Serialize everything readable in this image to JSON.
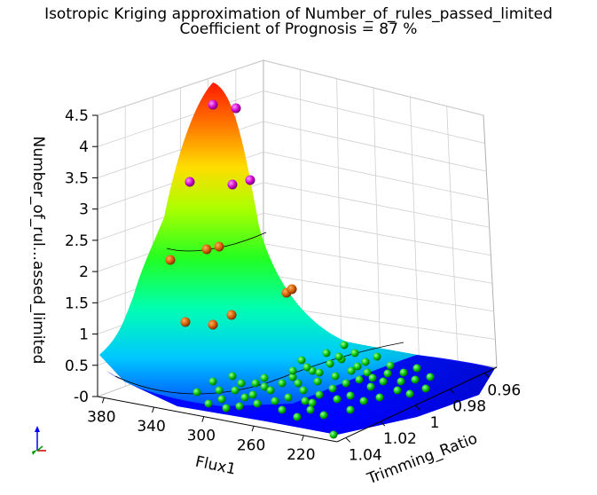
{
  "chart_data": {
    "type": "surface3d",
    "title": "Isotropic Kriging approximation of Number_of_rules_passed_limited",
    "subtitle": "Coefficient of Prognosis = 87 %",
    "xlabel": "Flux1",
    "ylabel": "Trimming_Ratio",
    "zlabel": "Number_of_rul...assed_limited",
    "x_ticks": [
      "380",
      "340",
      "300",
      "260",
      "220"
    ],
    "y_ticks": [
      "1.04",
      "1.02",
      "1",
      "0.98",
      "0.96"
    ],
    "z_ticks": [
      "-0",
      "0.5",
      "1",
      "1.5",
      "2",
      "2.5",
      "3",
      "3.5",
      "4",
      "4.5"
    ],
    "zlim": [
      0,
      4.5
    ],
    "grid": true,
    "colormap": [
      "#0000ff",
      "#00a0ff",
      "#00ffff",
      "#00ff66",
      "#66ff00",
      "#ffff00",
      "#ff9900",
      "#ff2200"
    ],
    "point_colors": {
      "level_4": "#cc00cc",
      "level_2_3": "#cc5500",
      "level_0": "#00b400"
    }
  }
}
